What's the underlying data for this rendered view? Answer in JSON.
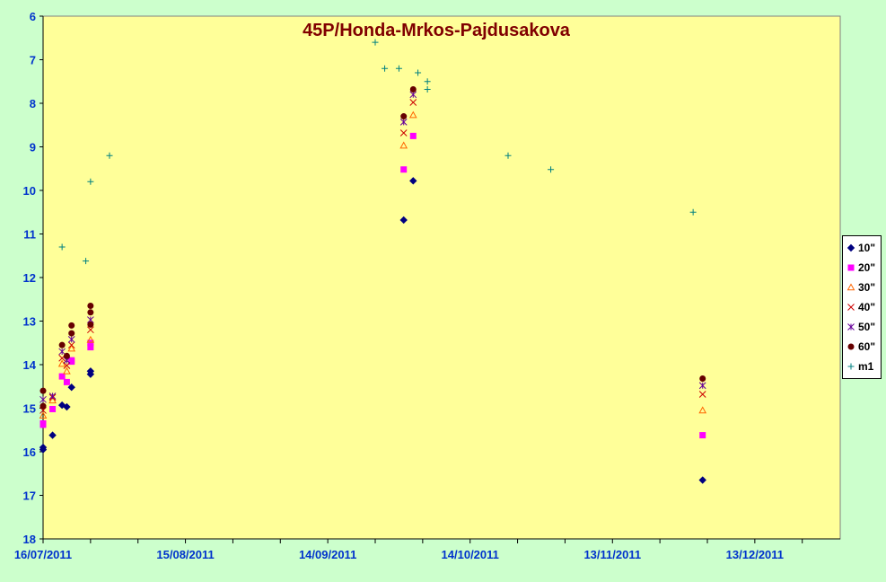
{
  "chart_data": {
    "type": "scatter",
    "title": "45P/Honda-Mrkos-Pajdusakova",
    "xlabel": "",
    "ylabel": "",
    "x_range": [
      "16/07/2011",
      "31/12/2011"
    ],
    "y_range": [
      6,
      18
    ],
    "y_reversed": true,
    "x_ticks": [
      "16/07/2011",
      "15/08/2011",
      "14/09/2011",
      "14/10/2011",
      "13/11/2011",
      "13/12/2011"
    ],
    "y_ticks": [
      "6",
      "7",
      "8",
      "9",
      "10",
      "11",
      "12",
      "13",
      "14",
      "15",
      "16",
      "17",
      "18"
    ],
    "grid": false,
    "legend_position": "right",
    "colors": {
      "plot_background": "#ffff99",
      "page_background": "#ccffcc",
      "title": "#800000",
      "axis_labels": "#0033cc"
    },
    "series": [
      {
        "name": "10\"",
        "marker": "diamond",
        "color": "#000080",
        "points": [
          [
            "16/07/2011",
            15.9
          ],
          [
            "16/07/2011",
            15.95
          ],
          [
            "18/07/2011",
            15.62
          ],
          [
            "20/07/2011",
            14.93
          ],
          [
            "21/07/2011",
            14.97
          ],
          [
            "22/07/2011",
            14.52
          ],
          [
            "26/07/2011",
            14.15
          ],
          [
            "26/07/2011",
            14.22
          ],
          [
            "30/09/2011",
            10.68
          ],
          [
            "02/10/2011",
            9.78
          ],
          [
            "02/12/2011",
            16.65
          ]
        ]
      },
      {
        "name": "20\"",
        "marker": "square",
        "color": "#ff00ff",
        "points": [
          [
            "16/07/2011",
            15.35
          ],
          [
            "16/07/2011",
            15.38
          ],
          [
            "18/07/2011",
            15.02
          ],
          [
            "20/07/2011",
            14.27
          ],
          [
            "21/07/2011",
            14.4
          ],
          [
            "22/07/2011",
            13.9
          ],
          [
            "22/07/2011",
            13.93
          ],
          [
            "26/07/2011",
            13.5
          ],
          [
            "26/07/2011",
            13.6
          ],
          [
            "30/09/2011",
            9.52
          ],
          [
            "02/10/2011",
            8.75
          ],
          [
            "02/12/2011",
            15.62
          ]
        ]
      },
      {
        "name": "30\"",
        "marker": "triangle",
        "color": "#ff6600",
        "points": [
          [
            "16/07/2011",
            15.17
          ],
          [
            "18/07/2011",
            14.82
          ],
          [
            "20/07/2011",
            13.98
          ],
          [
            "21/07/2011",
            14.15
          ],
          [
            "22/07/2011",
            13.63
          ],
          [
            "26/07/2011",
            13.43
          ],
          [
            "30/09/2011",
            8.97
          ],
          [
            "02/10/2011",
            8.27
          ],
          [
            "02/12/2011",
            15.05
          ]
        ]
      },
      {
        "name": "40\"",
        "marker": "x",
        "color": "#cc0000",
        "points": [
          [
            "16/07/2011",
            15.05
          ],
          [
            "18/07/2011",
            14.75
          ],
          [
            "20/07/2011",
            13.85
          ],
          [
            "21/07/2011",
            14.02
          ],
          [
            "22/07/2011",
            13.55
          ],
          [
            "26/07/2011",
            13.2
          ],
          [
            "30/09/2011",
            8.68
          ],
          [
            "02/10/2011",
            7.98
          ],
          [
            "02/12/2011",
            14.68
          ]
        ]
      },
      {
        "name": "50\"",
        "marker": "star",
        "color": "#660099",
        "points": [
          [
            "16/07/2011",
            14.8
          ],
          [
            "18/07/2011",
            14.72
          ],
          [
            "20/07/2011",
            13.7
          ],
          [
            "21/07/2011",
            13.9
          ],
          [
            "22/07/2011",
            13.42
          ],
          [
            "26/07/2011",
            12.97
          ],
          [
            "30/09/2011",
            8.43
          ],
          [
            "02/10/2011",
            7.8
          ],
          [
            "02/12/2011",
            14.48
          ]
        ]
      },
      {
        "name": "60\"",
        "marker": "circle",
        "color": "#660000",
        "points": [
          [
            "16/07/2011",
            14.6
          ],
          [
            "16/07/2011",
            14.95
          ],
          [
            "20/07/2011",
            13.55
          ],
          [
            "21/07/2011",
            13.8
          ],
          [
            "22/07/2011",
            13.1
          ],
          [
            "22/07/2011",
            13.28
          ],
          [
            "26/07/2011",
            12.65
          ],
          [
            "26/07/2011",
            12.8
          ],
          [
            "26/07/2011",
            13.08
          ],
          [
            "30/09/2011",
            8.3
          ],
          [
            "02/10/2011",
            7.68
          ],
          [
            "02/12/2011",
            14.32
          ]
        ]
      },
      {
        "name": "m1",
        "marker": "plus",
        "color": "#008080",
        "points": [
          [
            "20/07/2011",
            11.3
          ],
          [
            "25/07/2011",
            11.62
          ],
          [
            "26/07/2011",
            9.8
          ],
          [
            "30/07/2011",
            9.2
          ],
          [
            "24/09/2011",
            6.6
          ],
          [
            "26/09/2011",
            7.2
          ],
          [
            "29/09/2011",
            7.2
          ],
          [
            "03/10/2011",
            7.3
          ],
          [
            "05/10/2011",
            7.5
          ],
          [
            "05/10/2011",
            7.68
          ],
          [
            "22/10/2011",
            9.2
          ],
          [
            "31/10/2011",
            9.52
          ],
          [
            "30/11/2011",
            10.5
          ]
        ]
      }
    ]
  }
}
